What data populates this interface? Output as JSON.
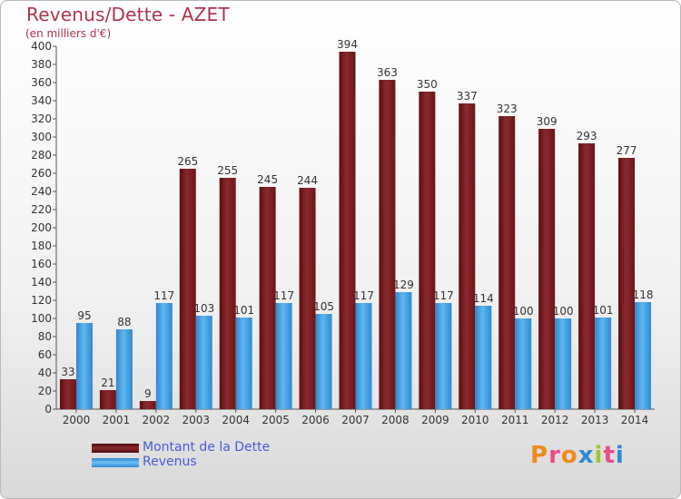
{
  "chart_data": {
    "type": "bar",
    "title": "Revenus/Dette - AZET",
    "subtitle": "(en milliers d'€)",
    "categories": [
      "2000",
      "2001",
      "2002",
      "2003",
      "2004",
      "2005",
      "2006",
      "2007",
      "2008",
      "2009",
      "2010",
      "2011",
      "2012",
      "2013",
      "2014"
    ],
    "series": [
      {
        "name": "Montant de la Dette",
        "color": "#7a1a1d",
        "values": [
          33,
          21,
          9,
          265,
          255,
          245,
          244,
          394,
          363,
          350,
          337,
          323,
          309,
          293,
          277
        ]
      },
      {
        "name": "Revenus",
        "color": "#3a9ee0",
        "values": [
          95,
          88,
          117,
          103,
          101,
          117,
          105,
          117,
          129,
          117,
          114,
          100,
          100,
          101,
          118
        ]
      }
    ],
    "ylim": [
      0,
      400
    ],
    "ytick_step": 20,
    "grid": false,
    "legend_position": "bottom-left"
  },
  "logo_text": "Proxiti"
}
